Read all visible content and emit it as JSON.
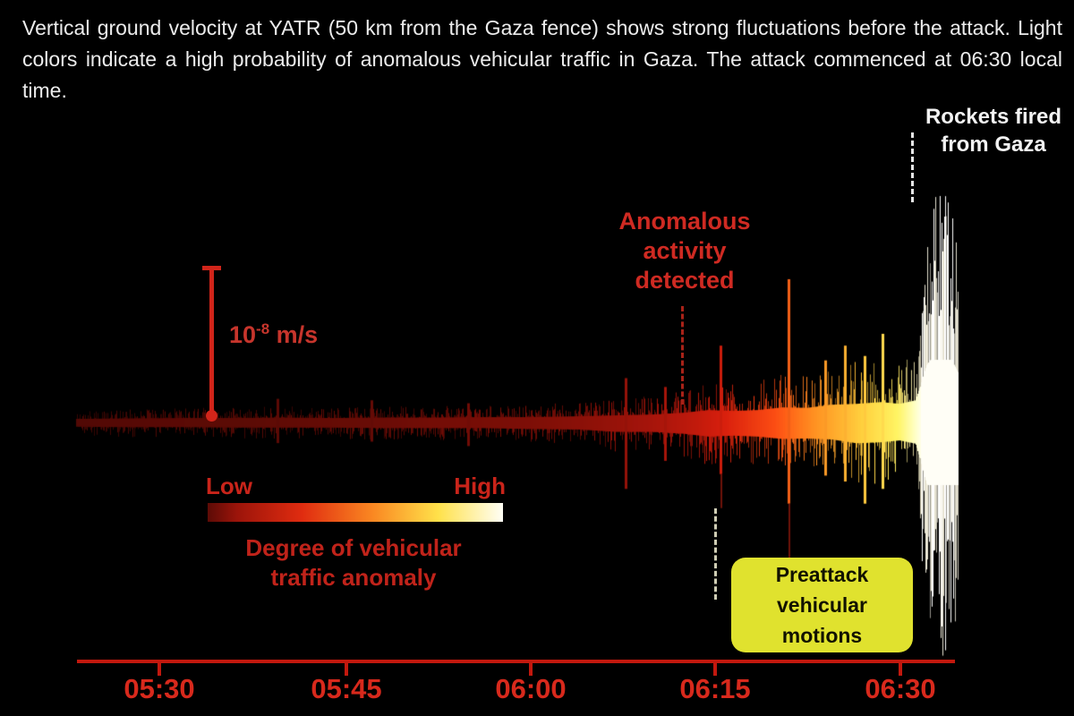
{
  "header": {
    "text": "Vertical ground velocity at YATR (50 km from the Gaza fence) shows strong fluctuations before the attack. Light colors indicate a high probability of anomalous vehicular traffic in Gaza. The attack commenced at 06:30 local time."
  },
  "annotations": {
    "rockets": {
      "lines": [
        "Rockets fired",
        "from Gaza"
      ]
    },
    "anomalous": {
      "lines": [
        "Anomalous",
        "activity",
        "detected"
      ]
    },
    "preattack": {
      "lines": [
        "Preattack",
        "vehicular",
        "motions"
      ]
    },
    "scale_bar": {
      "base": "10",
      "exponent": "-8",
      "unit": " m/s"
    }
  },
  "legend": {
    "low": "Low",
    "high": "High",
    "caption": "Degree of vehicular traffic anomaly"
  },
  "colors": {
    "background": "#000000",
    "annotation_red": "#cf2a22",
    "axis_red": "#c2180e",
    "box_yellow": "#e0e22e",
    "text_white": "#ececec",
    "spike_tail": "#6e120a"
  },
  "chart_data": {
    "type": "line",
    "subtype": "seismogram",
    "station": "YATR",
    "ylabel": "vertical ground velocity",
    "amplitude_units": "1e-8 m/s",
    "scale_bar_value": "10^-8 m/s",
    "title": "Vertical ground velocity at YATR",
    "legend_position": "bottom-left",
    "grid": false,
    "time_axis": {
      "ticks": [
        "05:30",
        "05:45",
        "06:00",
        "06:15",
        "06:30"
      ],
      "tick_minutes": [
        0,
        15,
        30,
        45,
        60
      ],
      "start_minute": -6.7,
      "end_minute": 64.8
    },
    "events": [
      {
        "label": "Anomalous activity detected",
        "time": "06:12",
        "minute": 42.5
      },
      {
        "label": "Preattack vehicular motions",
        "time": "06:21",
        "minute": 51
      },
      {
        "label": "Rockets fired from Gaza",
        "time": "06:31",
        "minute": 61
      }
    ],
    "envelope_points": [
      {
        "minute": -7.0,
        "amp_up": 0.08,
        "amp_down": 0.09,
        "anomaly": 0.03
      },
      {
        "minute": -3.0,
        "amp_up": 0.09,
        "amp_down": 0.1,
        "anomaly": 0.04
      },
      {
        "minute": 2.0,
        "amp_up": 0.1,
        "amp_down": 0.1,
        "anomaly": 0.05
      },
      {
        "minute": 6.0,
        "amp_up": 0.1,
        "amp_down": 0.11,
        "anomaly": 0.05
      },
      {
        "minute": 10.0,
        "amp_up": 0.11,
        "amp_down": 0.11,
        "anomaly": 0.06
      },
      {
        "minute": 14.0,
        "amp_up": 0.1,
        "amp_down": 0.11,
        "anomaly": 0.07
      },
      {
        "minute": 18.0,
        "amp_up": 0.11,
        "amp_down": 0.12,
        "anomaly": 0.08
      },
      {
        "minute": 22.0,
        "amp_up": 0.11,
        "amp_down": 0.12,
        "anomaly": 0.1
      },
      {
        "minute": 26.0,
        "amp_up": 0.12,
        "amp_down": 0.12,
        "anomaly": 0.11
      },
      {
        "minute": 30.0,
        "amp_up": 0.12,
        "amp_down": 0.14,
        "anomaly": 0.13
      },
      {
        "minute": 34.0,
        "amp_up": 0.14,
        "amp_down": 0.15,
        "anomaly": 0.17
      },
      {
        "minute": 37.0,
        "amp_up": 0.16,
        "amp_down": 0.2,
        "anomaly": 0.21
      },
      {
        "minute": 40.0,
        "amp_up": 0.18,
        "amp_down": 0.2,
        "anomaly": 0.26
      },
      {
        "minute": 42.5,
        "amp_up": 0.22,
        "amp_down": 0.24,
        "anomaly": 0.31
      },
      {
        "minute": 44.5,
        "amp_up": 0.28,
        "amp_down": 0.3,
        "anomaly": 0.36
      },
      {
        "minute": 46.5,
        "amp_up": 0.26,
        "amp_down": 0.28,
        "anomaly": 0.42
      },
      {
        "minute": 48.5,
        "amp_up": 0.28,
        "amp_down": 0.3,
        "anomaly": 0.48
      },
      {
        "minute": 50.5,
        "amp_up": 0.34,
        "amp_down": 0.35,
        "anomaly": 0.54
      },
      {
        "minute": 52.5,
        "amp_up": 0.33,
        "amp_down": 0.34,
        "anomaly": 0.6
      },
      {
        "minute": 54.5,
        "amp_up": 0.4,
        "amp_down": 0.36,
        "anomaly": 0.66
      },
      {
        "minute": 56.5,
        "amp_up": 0.42,
        "amp_down": 0.44,
        "anomaly": 0.72
      },
      {
        "minute": 58.5,
        "amp_up": 0.46,
        "amp_down": 0.42,
        "anomaly": 0.79
      },
      {
        "minute": 60.0,
        "amp_up": 0.42,
        "amp_down": 0.38,
        "anomaly": 0.85
      },
      {
        "minute": 61.3,
        "amp_up": 0.5,
        "amp_down": 0.45,
        "anomaly": 0.93
      },
      {
        "minute": 62.2,
        "amp_up": 1.3,
        "amp_down": 1.3,
        "anomaly": 1.0
      },
      {
        "minute": 63.0,
        "amp_up": 1.6,
        "amp_down": 1.58,
        "anomaly": 1.0
      },
      {
        "minute": 64.0,
        "amp_up": 1.55,
        "amp_down": 1.6,
        "anomaly": 1.0
      },
      {
        "minute": 64.8,
        "amp_up": 1.1,
        "amp_down": 1.3,
        "anomaly": 1.0
      }
    ],
    "feature_spikes": [
      {
        "minute": 9.6,
        "amp_up": 0.16,
        "amp_down": 0.14
      },
      {
        "minute": 17.2,
        "amp_up": 0.15,
        "amp_down": 0.13
      },
      {
        "minute": 25.0,
        "amp_up": 0.13,
        "amp_down": 0.16
      },
      {
        "minute": 37.8,
        "amp_up": 0.3,
        "amp_down": 0.45
      },
      {
        "minute": 41.0,
        "amp_up": 0.24,
        "amp_down": 0.26
      },
      {
        "minute": 45.5,
        "amp_up": 0.52,
        "amp_down": 0.35,
        "tail_down": 0.58
      },
      {
        "minute": 51.0,
        "amp_up": 0.97,
        "amp_down": 0.55,
        "tail_down": 0.93
      },
      {
        "minute": 54.0,
        "amp_up": 0.42,
        "amp_down": 0.36
      },
      {
        "minute": 55.6,
        "amp_up": 0.52,
        "amp_down": 0.4
      },
      {
        "minute": 57.2,
        "amp_up": 0.45,
        "amp_down": 0.55
      },
      {
        "minute": 58.6,
        "amp_up": 0.6,
        "amp_down": 0.45
      }
    ],
    "colormap": [
      {
        "stop": 0.0,
        "color": "#3f0704"
      },
      {
        "stop": 0.1,
        "color": "#6e0c06"
      },
      {
        "stop": 0.25,
        "color": "#9c130a"
      },
      {
        "stop": 0.4,
        "color": "#cf1e0c"
      },
      {
        "stop": 0.52,
        "color": "#ef4912"
      },
      {
        "stop": 0.62,
        "color": "#fb8c20"
      },
      {
        "stop": 0.74,
        "color": "#ffc93c"
      },
      {
        "stop": 0.84,
        "color": "#ffe85e"
      },
      {
        "stop": 0.93,
        "color": "#fdf4c0"
      },
      {
        "stop": 1.0,
        "color": "#ffffff"
      }
    ],
    "burst_palette": [
      "#ffffff",
      "#f6f2e2",
      "#e6e2d0",
      "#c9c6b8",
      "#97958c"
    ]
  }
}
